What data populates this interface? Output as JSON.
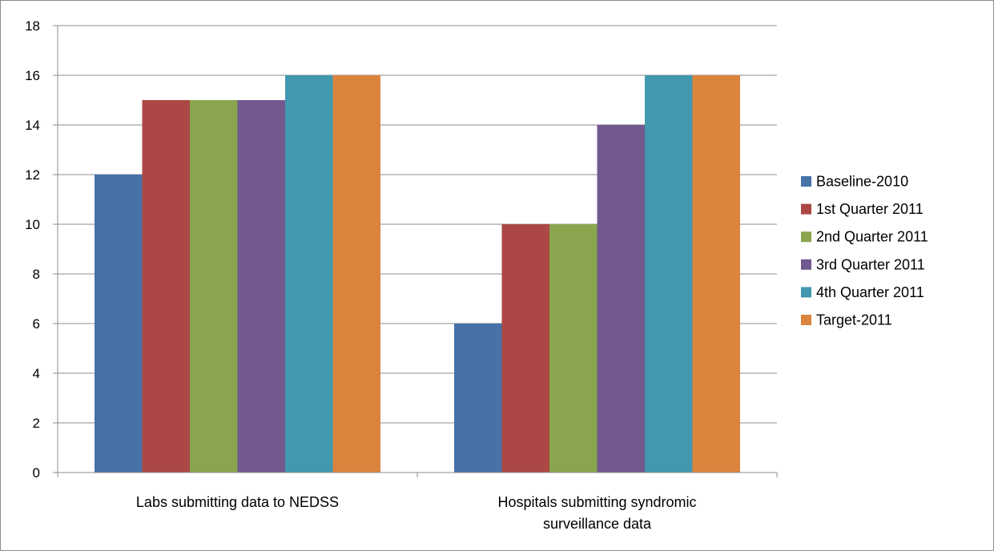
{
  "chart_data": {
    "type": "bar",
    "title": "",
    "xlabel": "",
    "ylabel": "",
    "ylim": [
      0,
      18
    ],
    "yticks": [
      0,
      2,
      4,
      6,
      8,
      10,
      12,
      14,
      16,
      18
    ],
    "ytick_labels": [
      "0",
      "2",
      "4",
      "6",
      "8",
      "10",
      "12",
      "14",
      "16",
      "18"
    ],
    "grid": true,
    "legend_position": "right",
    "categories": [
      [
        "Labs submitting data to NEDSS"
      ],
      [
        "Hospitals submitting syndromic",
        "surveillance data"
      ]
    ],
    "series": [
      {
        "name": "Baseline-2010",
        "color": "#4672A8",
        "values": [
          12,
          6
        ]
      },
      {
        "name": "1st Quarter 2011",
        "color": "#AB4744",
        "values": [
          15,
          10
        ]
      },
      {
        "name": "2nd Quarter 2011",
        "color": "#89A54E",
        "values": [
          15,
          10
        ]
      },
      {
        "name": "3rd Quarter 2011",
        "color": "#71588F",
        "values": [
          15,
          14
        ]
      },
      {
        "name": "4th Quarter 2011",
        "color": "#4198AF",
        "values": [
          16,
          16
        ]
      },
      {
        "name": "Target-2011",
        "color": "#DB843D",
        "values": [
          16,
          16
        ]
      }
    ]
  }
}
